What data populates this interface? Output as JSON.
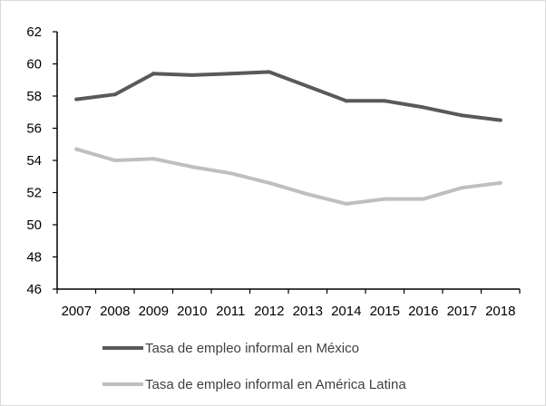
{
  "chart_data": {
    "type": "line",
    "title": "",
    "xlabel": "",
    "ylabel": "",
    "x": [
      "2007",
      "2008",
      "2009",
      "2010",
      "2011",
      "2012",
      "2013",
      "2014",
      "2015",
      "2016",
      "2017",
      "2018"
    ],
    "ylim": [
      46,
      62
    ],
    "yticks": [
      46,
      48,
      50,
      52,
      54,
      56,
      58,
      60,
      62
    ],
    "grid": false,
    "legend_position": "bottom",
    "series": [
      {
        "name": "Tasa de empleo informal en México",
        "color": "#595959",
        "values": [
          57.8,
          58.1,
          59.4,
          59.3,
          59.4,
          59.5,
          58.6,
          57.7,
          57.7,
          57.3,
          56.8,
          56.5
        ]
      },
      {
        "name": "Tasa de empleo informal en América Latina",
        "color": "#bfbfbf",
        "values": [
          54.7,
          54.0,
          54.1,
          53.6,
          53.2,
          52.6,
          51.9,
          51.3,
          51.6,
          51.6,
          52.3,
          52.6
        ]
      }
    ]
  }
}
